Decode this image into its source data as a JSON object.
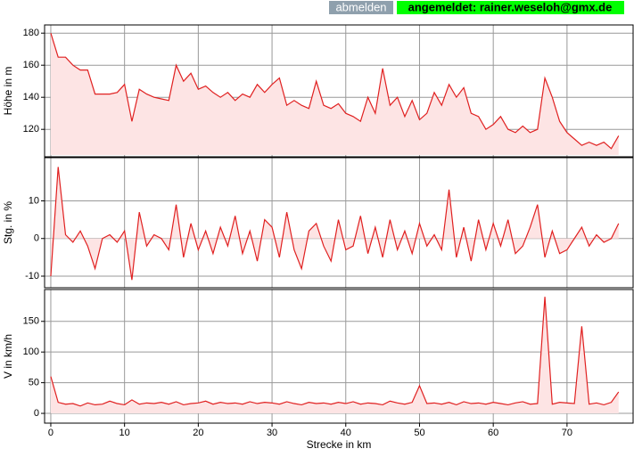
{
  "header": {
    "logout": "abmelden",
    "status": "angemeldet: rainer.weseloh@gmx.de"
  },
  "chart_data": [
    {
      "type": "area",
      "ylabel": "Höhe in m",
      "color": "#e02020",
      "fill": "#fde4e4",
      "xlim": [
        -0.6,
        78.6
      ],
      "xticks": [
        0,
        10,
        20,
        30,
        40,
        50,
        60,
        70
      ],
      "ylim": [
        104,
        184
      ],
      "yticks": [
        120,
        140,
        160,
        180
      ],
      "grid": true,
      "x": [
        0,
        1,
        2,
        3,
        4,
        5,
        6,
        7,
        8,
        9,
        10,
        11,
        12,
        13,
        14,
        15,
        16,
        17,
        18,
        19,
        20,
        21,
        22,
        23,
        24,
        25,
        26,
        27,
        28,
        29,
        30,
        31,
        32,
        33,
        34,
        35,
        36,
        37,
        38,
        39,
        40,
        41,
        42,
        43,
        44,
        45,
        46,
        47,
        48,
        49,
        50,
        51,
        52,
        53,
        54,
        55,
        56,
        57,
        58,
        59,
        60,
        61,
        62,
        63,
        64,
        65,
        66,
        67,
        68,
        69,
        70,
        71,
        72,
        73,
        74,
        75,
        76,
        77
      ],
      "values": [
        180,
        165,
        165,
        160,
        157,
        157,
        142,
        142,
        142,
        143,
        148,
        125,
        145,
        142,
        140,
        139,
        138,
        160,
        150,
        155,
        145,
        147,
        143,
        140,
        143,
        138,
        142,
        140,
        148,
        143,
        148,
        152,
        135,
        138,
        135,
        133,
        150,
        135,
        133,
        136,
        130,
        128,
        125,
        140,
        130,
        158,
        135,
        140,
        128,
        138,
        126,
        130,
        143,
        135,
        148,
        140,
        146,
        130,
        128,
        120,
        123,
        128,
        120,
        118,
        122,
        118,
        120,
        152,
        140,
        125,
        118,
        114,
        110,
        112,
        110,
        112,
        108,
        116
      ]
    },
    {
      "type": "area",
      "ylabel": "Stg. in %",
      "color": "#e02020",
      "fill": "#fde4e4",
      "xlim": [
        -0.6,
        78.6
      ],
      "xticks": [
        0,
        10,
        20,
        30,
        40,
        50,
        60,
        70
      ],
      "ylim": [
        -12.6,
        21
      ],
      "yticks": [
        -10,
        0,
        10
      ],
      "grid": true,
      "x": [
        0,
        1,
        2,
        3,
        4,
        5,
        6,
        7,
        8,
        9,
        10,
        11,
        12,
        13,
        14,
        15,
        16,
        17,
        18,
        19,
        20,
        21,
        22,
        23,
        24,
        25,
        26,
        27,
        28,
        29,
        30,
        31,
        32,
        33,
        34,
        35,
        36,
        37,
        38,
        39,
        40,
        41,
        42,
        43,
        44,
        45,
        46,
        47,
        48,
        49,
        50,
        51,
        52,
        53,
        54,
        55,
        56,
        57,
        58,
        59,
        60,
        61,
        62,
        63,
        64,
        65,
        66,
        67,
        68,
        69,
        70,
        71,
        72,
        73,
        74,
        75,
        76,
        77
      ],
      "values": [
        -10,
        19,
        1,
        -1,
        2,
        -2,
        -8,
        0,
        1,
        -1,
        2,
        -11,
        7,
        -2,
        1,
        0,
        -3,
        9,
        -5,
        4,
        -3,
        2,
        -4,
        3,
        -2,
        6,
        -4,
        2,
        -6,
        5,
        3,
        -5,
        7,
        -3,
        -8,
        2,
        4,
        -2,
        -6,
        5,
        -3,
        -2,
        6,
        -4,
        3,
        -5,
        5,
        -3,
        2,
        -4,
        4,
        -2,
        1,
        -3,
        13,
        -5,
        3,
        -6,
        5,
        -3,
        4,
        -2,
        5,
        -4,
        -2,
        3,
        9,
        -5,
        2,
        -4,
        -3,
        0,
        3,
        -2,
        1,
        -1,
        0,
        4
      ]
    },
    {
      "type": "area",
      "ylabel": "V in km/h",
      "xlabel": "Strecke in km",
      "color": "#e02020",
      "fill": "#fde4e4",
      "xlim": [
        -0.6,
        78.6
      ],
      "xticks": [
        0,
        10,
        20,
        30,
        40,
        50,
        60,
        70
      ],
      "ylim": [
        -13,
        199
      ],
      "yticks": [
        0,
        50,
        100,
        150
      ],
      "grid": true,
      "x": [
        0,
        1,
        2,
        3,
        4,
        5,
        6,
        7,
        8,
        9,
        10,
        11,
        12,
        13,
        14,
        15,
        16,
        17,
        18,
        19,
        20,
        21,
        22,
        23,
        24,
        25,
        26,
        27,
        28,
        29,
        30,
        31,
        32,
        33,
        34,
        35,
        36,
        37,
        38,
        39,
        40,
        41,
        42,
        43,
        44,
        45,
        46,
        47,
        48,
        49,
        50,
        51,
        52,
        53,
        54,
        55,
        56,
        57,
        58,
        59,
        60,
        61,
        62,
        63,
        64,
        65,
        66,
        67,
        68,
        69,
        70,
        71,
        72,
        73,
        74,
        75,
        76,
        77
      ],
      "values": [
        60,
        18,
        15,
        16,
        12,
        17,
        14,
        15,
        20,
        16,
        14,
        22,
        15,
        17,
        16,
        18,
        15,
        19,
        14,
        16,
        17,
        20,
        15,
        18,
        16,
        17,
        15,
        19,
        16,
        18,
        17,
        15,
        19,
        16,
        14,
        18,
        16,
        17,
        15,
        18,
        16,
        19,
        15,
        17,
        16,
        14,
        20,
        17,
        15,
        18,
        45,
        16,
        17,
        15,
        18,
        14,
        19,
        16,
        17,
        15,
        18,
        16,
        14,
        17,
        19,
        15,
        16,
        190,
        15,
        18,
        17,
        16,
        142,
        15,
        17,
        14,
        18,
        35
      ]
    }
  ]
}
